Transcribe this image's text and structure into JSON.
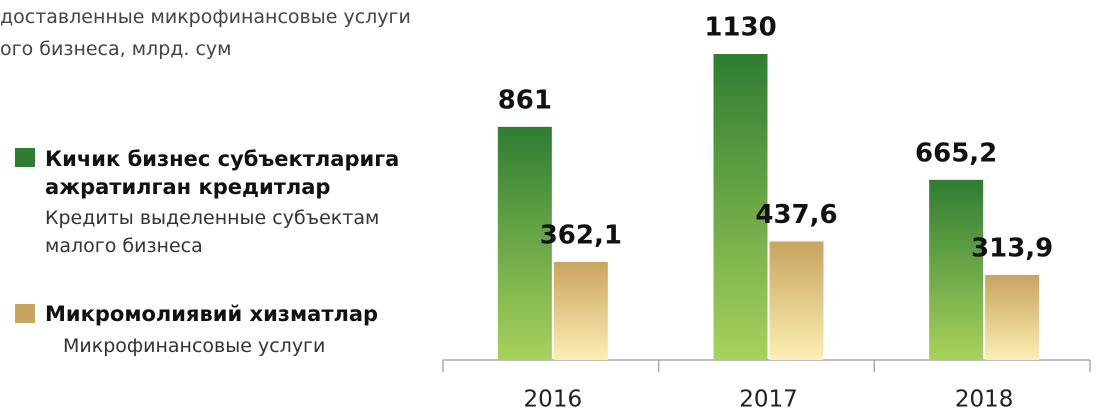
{
  "chart_data": {
    "type": "bar",
    "subtitle": [
      "доставленные микрофинансовые услуги",
      "ого бизнеса, млрд. сум"
    ],
    "categories": [
      "2016",
      "2017",
      "2018"
    ],
    "series": [
      {
        "name": "Кичик бизнес субъектларига ажратилган кредитлар",
        "name_translation": "Кредиты выделенные субъектам малого бизнеса",
        "color": "#2e7d32",
        "color_light": "#a8d25c",
        "values": [
          861,
          1130,
          665.2
        ],
        "value_labels": [
          "861",
          "1130",
          "665,2"
        ]
      },
      {
        "name": "Микромолиявий хизматлар",
        "name_translation": "Микрофинансовые услуги",
        "color": "#c9a45e",
        "color_light": "#fcefb4",
        "values": [
          362.1,
          437.6,
          313.9
        ],
        "value_labels": [
          "362,1",
          "437,6",
          "313,9"
        ]
      }
    ],
    "grid": false
  }
}
